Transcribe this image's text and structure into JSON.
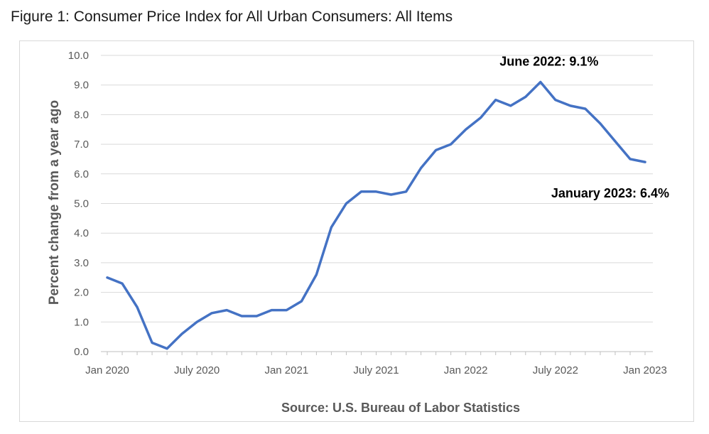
{
  "chart_data": {
    "type": "line",
    "title": "Figure 1: Consumer Price Index for All Urban Consumers: All Items",
    "ylabel": "Percent change from a year ago",
    "xlabel": "",
    "source": "Source: U.S. Bureau of Labor Statistics",
    "ylim": [
      0,
      10
    ],
    "yticks": [
      "0.0",
      "1.0",
      "2.0",
      "3.0",
      "4.0",
      "5.0",
      "6.0",
      "7.0",
      "8.0",
      "9.0",
      "10.0"
    ],
    "xtick_labels": [
      {
        "index": 0,
        "label": "Jan 2020"
      },
      {
        "index": 6,
        "label": "July 2020"
      },
      {
        "index": 12,
        "label": "Jan 2021"
      },
      {
        "index": 18,
        "label": "July 2021"
      },
      {
        "index": 24,
        "label": "Jan 2022"
      },
      {
        "index": 30,
        "label": "July 2022"
      },
      {
        "index": 36,
        "label": "Jan 2023"
      }
    ],
    "grid": true,
    "legend": "none",
    "series": [
      {
        "color": "#4472c4",
        "x": [
          "2020-01",
          "2020-02",
          "2020-03",
          "2020-04",
          "2020-05",
          "2020-06",
          "2020-07",
          "2020-08",
          "2020-09",
          "2020-10",
          "2020-11",
          "2020-12",
          "2021-01",
          "2021-02",
          "2021-03",
          "2021-04",
          "2021-05",
          "2021-06",
          "2021-07",
          "2021-08",
          "2021-09",
          "2021-10",
          "2021-11",
          "2021-12",
          "2022-01",
          "2022-02",
          "2022-03",
          "2022-04",
          "2022-05",
          "2022-06",
          "2022-07",
          "2022-08",
          "2022-09",
          "2022-10",
          "2022-11",
          "2022-12",
          "2023-01"
        ],
        "values": [
          2.5,
          2.3,
          1.5,
          0.3,
          0.1,
          0.6,
          1.0,
          1.3,
          1.4,
          1.2,
          1.2,
          1.4,
          1.4,
          1.7,
          2.6,
          4.2,
          5.0,
          5.4,
          5.4,
          5.3,
          5.4,
          6.2,
          6.8,
          7.0,
          7.5,
          7.9,
          8.5,
          8.3,
          8.6,
          9.1,
          8.5,
          8.3,
          8.2,
          7.7,
          7.1,
          6.5,
          6.4
        ]
      }
    ],
    "annotations": [
      {
        "text": "June 2022: 9.1%",
        "index": 29
      },
      {
        "text": "January 2023: 6.4%",
        "index": 36
      }
    ]
  }
}
